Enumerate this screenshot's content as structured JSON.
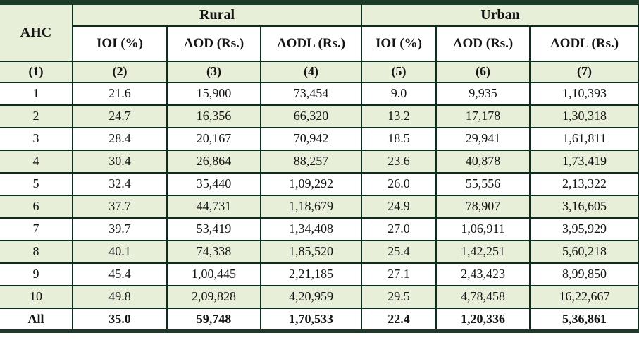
{
  "table": {
    "header": {
      "ahc": "AHC",
      "group_rural": "Rural",
      "group_urban": "Urban",
      "sub": [
        "IOI (%)",
        "AOD (Rs.)",
        "AODL (Rs.)",
        "IOI (%)",
        "AOD (Rs.)",
        "AODL (Rs.)"
      ],
      "col_numbers": [
        "(1)",
        "(2)",
        "(3)",
        "(4)",
        "(5)",
        "(6)",
        "(7)"
      ]
    },
    "rows": [
      {
        "ahc": "1",
        "cells": [
          "21.6",
          "15,900",
          "73,454",
          "9.0",
          "9,935",
          "1,10,393"
        ]
      },
      {
        "ahc": "2",
        "cells": [
          "24.7",
          "16,356",
          "66,320",
          "13.2",
          "17,178",
          "1,30,318"
        ]
      },
      {
        "ahc": "3",
        "cells": [
          "28.4",
          "20,167",
          "70,942",
          "18.5",
          "29,941",
          "1,61,811"
        ]
      },
      {
        "ahc": "4",
        "cells": [
          "30.4",
          "26,864",
          "88,257",
          "23.6",
          "40,878",
          "1,73,419"
        ]
      },
      {
        "ahc": "5",
        "cells": [
          "32.4",
          "35,440",
          "1,09,292",
          "26.0",
          "55,556",
          "2,13,322"
        ]
      },
      {
        "ahc": "6",
        "cells": [
          "37.7",
          "44,731",
          "1,18,679",
          "24.9",
          "78,907",
          "3,16,605"
        ]
      },
      {
        "ahc": "7",
        "cells": [
          "39.7",
          "53,419",
          "1,34,408",
          "27.0",
          "1,06,911",
          "3,95,929"
        ]
      },
      {
        "ahc": "8",
        "cells": [
          "40.1",
          "74,338",
          "1,85,520",
          "25.4",
          "1,42,251",
          "5,60,218"
        ]
      },
      {
        "ahc": "9",
        "cells": [
          "45.4",
          "1,00,445",
          "2,21,185",
          "27.1",
          "2,43,423",
          "8,99,850"
        ]
      },
      {
        "ahc": "10",
        "cells": [
          "49.8",
          "2,09,828",
          "4,20,959",
          "29.5",
          "4,78,458",
          "16,22,667"
        ]
      }
    ],
    "total_row": {
      "ahc": "All",
      "cells": [
        "35.0",
        "59,748",
        "1,70,533",
        "22.4",
        "1,20,336",
        "5,36,861"
      ]
    }
  },
  "colors": {
    "row_shade_green": "#e7efd9",
    "border_dark_green": "#0b2f1d",
    "thick_bar_green": "#1b3b28",
    "text": "#141414"
  }
}
